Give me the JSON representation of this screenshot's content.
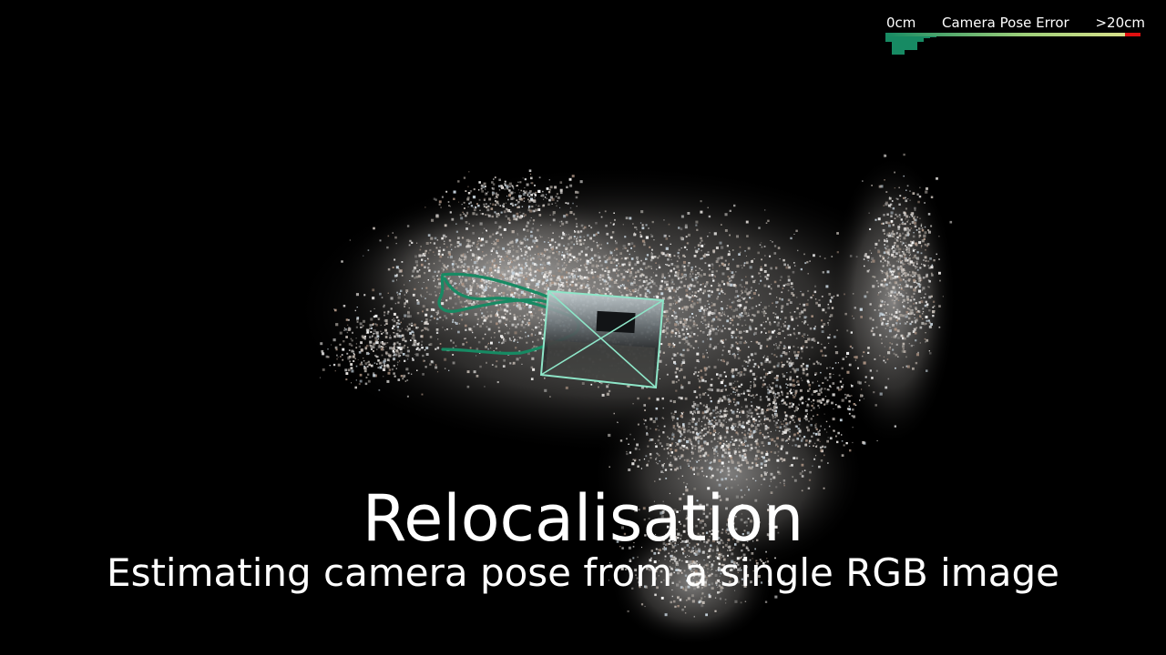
{
  "legend": {
    "min_label": "0cm",
    "title": "Camera Pose Error",
    "max_label": ">20cm",
    "colors": {
      "low": "#178a63",
      "mid": "#9fd07a",
      "high": "#d8e08a",
      "max": "#e01010"
    },
    "histogram_relative_counts": [
      0.3,
      1.0,
      1.0,
      0.75,
      0.75,
      0.3,
      0.1,
      0.05
    ]
  },
  "scene": {
    "point_cloud_icon": "point-cloud-icon",
    "trajectory_icon": "trajectory-icon",
    "camera_frustum_icon": "camera-frustum-icon",
    "trajectory_color": "#178a63",
    "frustum_color": "#8ee6c8"
  },
  "title": {
    "main": "Relocalisation",
    "subtitle": "Estimating camera pose from a single RGB image"
  }
}
